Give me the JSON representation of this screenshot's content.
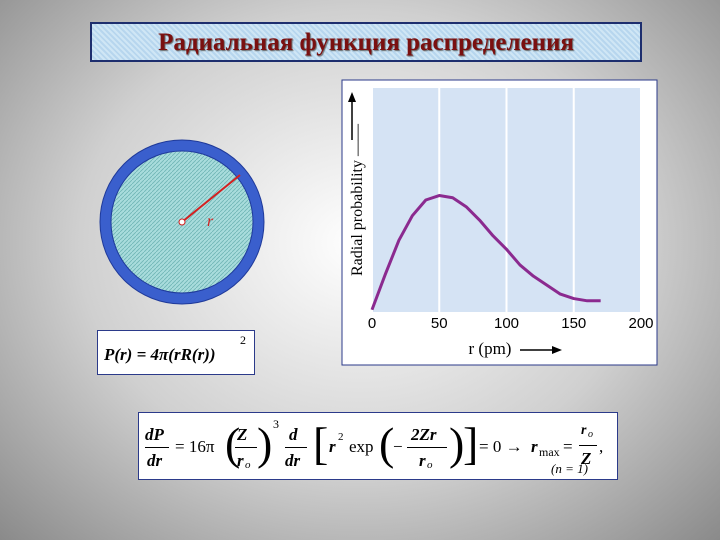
{
  "title": "Радиальная функция распределения",
  "circle_label": "r",
  "formula_1": {
    "body": "P(r) = 4π(rR(r))",
    "power": "2"
  },
  "formula_2": {
    "dp": "dP",
    "dr": "dr",
    "coef": "= 16π",
    "z": "Z",
    "r": "r",
    "o": "o",
    "cube": "3",
    "d": "d",
    "sq": "2",
    "exp": "exp",
    "minus": "−",
    "two_zr": "2Zr",
    "zero": "= 0 →",
    "max": "max",
    "eq": "=",
    "comma": ",",
    "n": "(n = 1)"
  },
  "chart_data": {
    "type": "line",
    "y_label": "Radial probability ——",
    "x_label": "r (pm)",
    "x": [
      0,
      10,
      20,
      30,
      40,
      50,
      60,
      70,
      80,
      90,
      100,
      110,
      120,
      130,
      140,
      150,
      160,
      170
    ],
    "series": [
      {
        "color": "#8b2a8f",
        "values": [
          0.01,
          0.17,
          0.32,
          0.43,
          0.5,
          0.52,
          0.51,
          0.47,
          0.41,
          0.34,
          0.28,
          0.21,
          0.16,
          0.12,
          0.08,
          0.06,
          0.05,
          0.05
        ]
      }
    ],
    "xlim": [
      0,
      200
    ],
    "ylim": [
      0,
      1
    ],
    "xticks": [
      0,
      50,
      100,
      150,
      200
    ],
    "grid": true
  }
}
